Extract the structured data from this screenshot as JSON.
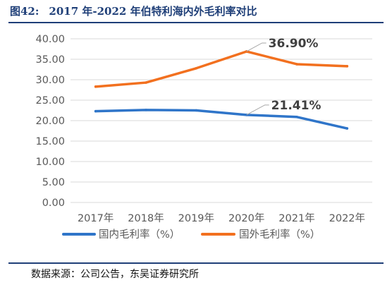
{
  "figure": {
    "number": "图42:",
    "title": "2017 年-2022 年伯特利海内外毛利率对比"
  },
  "source": "数据来源：公司公告，东吴证券研究所",
  "colors": {
    "domestic": "#2f75c9",
    "overseas": "#f2701f",
    "rule": "#1f3f78"
  },
  "chart_data": {
    "type": "line",
    "categories": [
      "2017年",
      "2018年",
      "2019年",
      "2020年",
      "2021年",
      "2022年"
    ],
    "series": [
      {
        "name": "国内毛利率（%）",
        "values": [
          22.3,
          22.6,
          22.5,
          21.41,
          20.9,
          18.1
        ],
        "color": "#2f75c9"
      },
      {
        "name": "国外毛利率（%）",
        "values": [
          28.3,
          29.3,
          32.8,
          36.9,
          33.8,
          33.3
        ],
        "color": "#f2701f"
      }
    ],
    "ylim": [
      0,
      40
    ],
    "yticks": [
      "0.00",
      "5.00",
      "10.00",
      "15.00",
      "20.00",
      "25.00",
      "30.00",
      "35.00",
      "40.00"
    ],
    "grid": true,
    "legend": "bottom",
    "annotations": [
      {
        "text": "36.90%",
        "series": 1,
        "index": 3
      },
      {
        "text": "21.41%",
        "series": 0,
        "index": 3
      }
    ]
  }
}
